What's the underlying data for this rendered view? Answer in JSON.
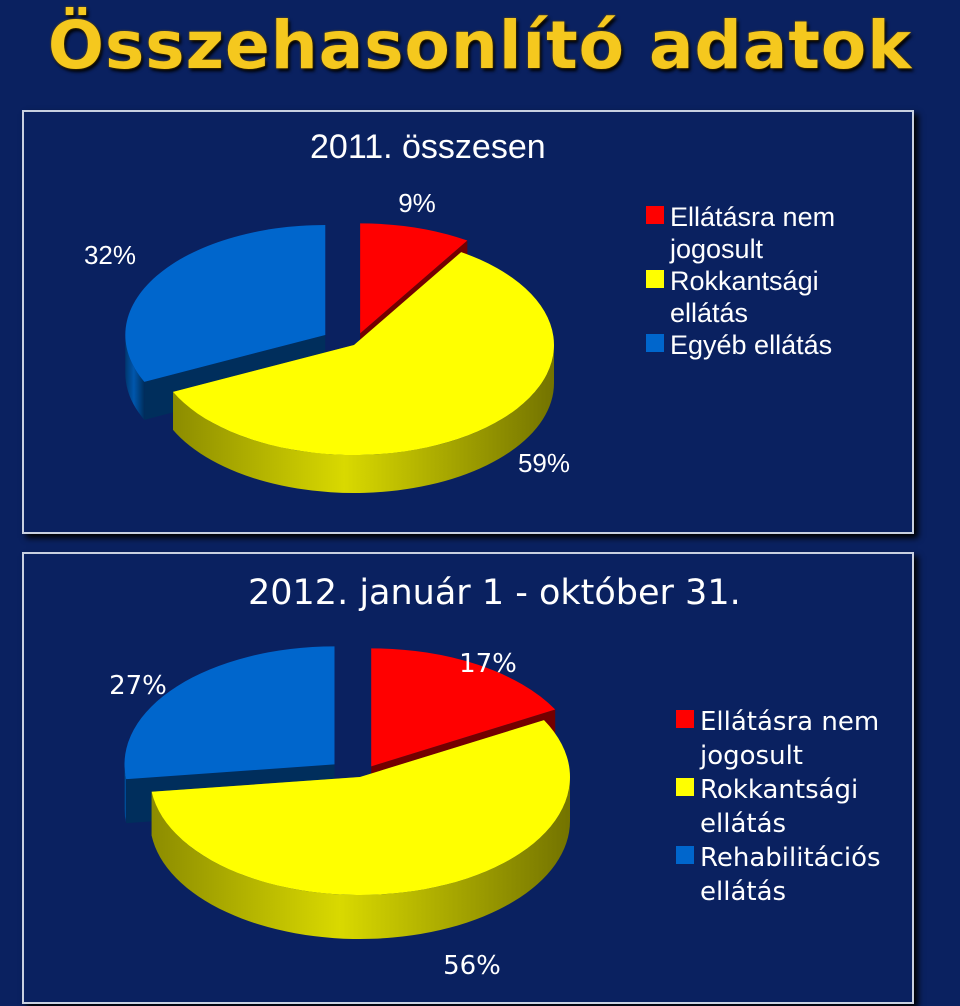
{
  "page_title": "Összehasonlító adatok",
  "colors": {
    "background": "#0a2160",
    "title": "#f5c81e",
    "red": "#ff0000",
    "yellow": "#ffff00",
    "blue": "#0066cc"
  },
  "chart_data": [
    {
      "type": "pie",
      "title": "2011. összesen",
      "categories": [
        "Ellátásra nem jogosult",
        "Rokkantsági ellátás",
        "Egyéb ellátás"
      ],
      "values": [
        9,
        59,
        32
      ],
      "labels": [
        "9%",
        "59%",
        "32%"
      ],
      "colors": [
        "#ff0000",
        "#ffff00",
        "#0066cc"
      ],
      "legend": {
        "position": "right",
        "entries": [
          [
            "Ellátásra nem",
            "jogosult"
          ],
          [
            "Rokkantsági",
            "ellátás"
          ],
          [
            "Egyéb ellátás"
          ]
        ]
      },
      "style": "3d exploded"
    },
    {
      "type": "pie",
      "title": "2012. január 1 - október 31.",
      "categories": [
        "Ellátásra nem jogosult",
        "Rokkantsági ellátás",
        "Rehabilitációs ellátás"
      ],
      "values": [
        17,
        56,
        27
      ],
      "labels": [
        "17%",
        "56%",
        "27%"
      ],
      "colors": [
        "#ff0000",
        "#ffff00",
        "#0066cc"
      ],
      "legend": {
        "position": "right",
        "entries": [
          [
            "Ellátásra nem",
            "jogosult"
          ],
          [
            "Rokkantsági",
            "ellátás"
          ],
          [
            "Rehabilitációs",
            "ellátás"
          ]
        ]
      },
      "style": "3d exploded"
    }
  ]
}
